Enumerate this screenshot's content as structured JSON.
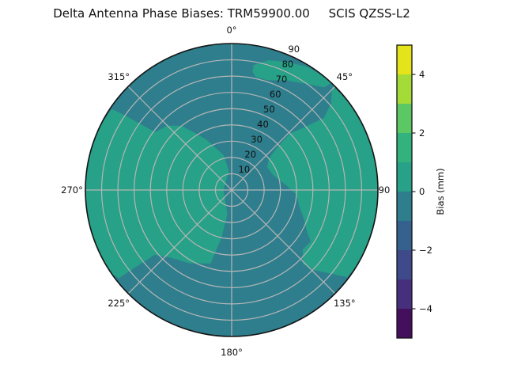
{
  "title": "Delta Antenna Phase Biases: TRM59900.00     SCIS QZSS-L2",
  "chart_data": {
    "type": "heatmap",
    "projection": "polar",
    "title": "Delta Antenna Phase Biases: TRM59900.00     SCIS QZSS-L2",
    "antenna": "TRM59900.00",
    "calibration": "SCIS",
    "signal": "QZSS-L2",
    "theta_tick_labels": [
      "0°",
      "45°",
      "90",
      "135°",
      "180°",
      "225°",
      "270°",
      "315°"
    ],
    "theta_direction": "clockwise-from-top",
    "r_tick_labels": [
      "10",
      "20",
      "30",
      "40",
      "50",
      "60",
      "70",
      "80",
      "90"
    ],
    "r_range": [
      0,
      90
    ],
    "r_label_angle_deg": 22.5,
    "grid": true,
    "colorbar": {
      "label": "Bias (mm)",
      "range": [
        -5,
        5
      ],
      "level_step": 1,
      "tick_values": [
        4,
        2,
        0,
        -2,
        -4
      ],
      "tick_labels": [
        "4",
        "2",
        "0",
        "−2",
        "−4"
      ],
      "segment_colors_top_to_bottom": [
        "#e5e41b",
        "#a5db36",
        "#5bc863",
        "#32b37d",
        "#27a187",
        "#2e7e8d",
        "#34618d",
        "#3e4a89",
        "#46307e",
        "#440f5c"
      ]
    },
    "colors": {
      "negative_region": "#2e7e8d",
      "positive_region": "#27a187",
      "grid": "#b6b6b6",
      "outline": "#141414",
      "text": "#111111"
    },
    "bias_bins_visible": [
      "-1 to 0 mm (teal base disc)",
      "0 to 1 mm (green lobes)"
    ],
    "positive_regions": [
      {
        "name": "west-central-lobe",
        "points": [
          [
            352,
            12
          ],
          [
            347,
            22
          ],
          [
            340,
            27
          ],
          [
            333,
            35
          ],
          [
            327,
            42
          ],
          [
            322,
            50
          ],
          [
            315,
            56
          ],
          [
            307,
            59
          ],
          [
            305,
            80
          ],
          [
            304,
            89
          ],
          [
            296,
            90
          ],
          [
            285,
            90
          ],
          [
            275,
            90
          ],
          [
            265,
            90
          ],
          [
            255,
            90
          ],
          [
            245,
            90
          ],
          [
            235,
            90
          ],
          [
            232,
            88
          ],
          [
            230,
            62
          ],
          [
            222,
            56
          ],
          [
            210,
            52
          ],
          [
            196,
            47
          ],
          [
            192,
            30
          ],
          [
            190,
            15
          ],
          [
            270,
            5
          ]
        ]
      },
      {
        "name": "east-lobe",
        "points": [
          [
            44,
            89
          ],
          [
            52,
            90
          ],
          [
            62,
            90
          ],
          [
            72,
            90
          ],
          [
            82,
            90
          ],
          [
            92,
            90
          ],
          [
            102,
            90
          ],
          [
            112,
            90
          ],
          [
            121,
            90
          ],
          [
            127,
            89
          ],
          [
            130,
            80
          ],
          [
            134,
            71
          ],
          [
            136,
            63
          ],
          [
            130,
            57
          ],
          [
            123,
            58
          ],
          [
            119,
            53
          ],
          [
            112,
            48
          ],
          [
            104,
            43
          ],
          [
            94,
            40
          ],
          [
            84,
            33
          ],
          [
            70,
            27
          ],
          [
            57,
            26
          ],
          [
            50,
            30
          ],
          [
            47,
            38
          ],
          [
            46,
            50
          ],
          [
            50,
            62
          ],
          [
            52,
            72
          ],
          [
            49,
            81
          ]
        ]
      },
      {
        "name": "north-east-rim-band",
        "points": [
          [
            10,
            78
          ],
          [
            16,
            83
          ],
          [
            24,
            86
          ],
          [
            32,
            89
          ],
          [
            40,
            90
          ],
          [
            43,
            90
          ],
          [
            42,
            85
          ],
          [
            34,
            79
          ],
          [
            26,
            75
          ],
          [
            18,
            71
          ],
          [
            12,
            71
          ],
          [
            10,
            74
          ]
        ]
      }
    ]
  }
}
